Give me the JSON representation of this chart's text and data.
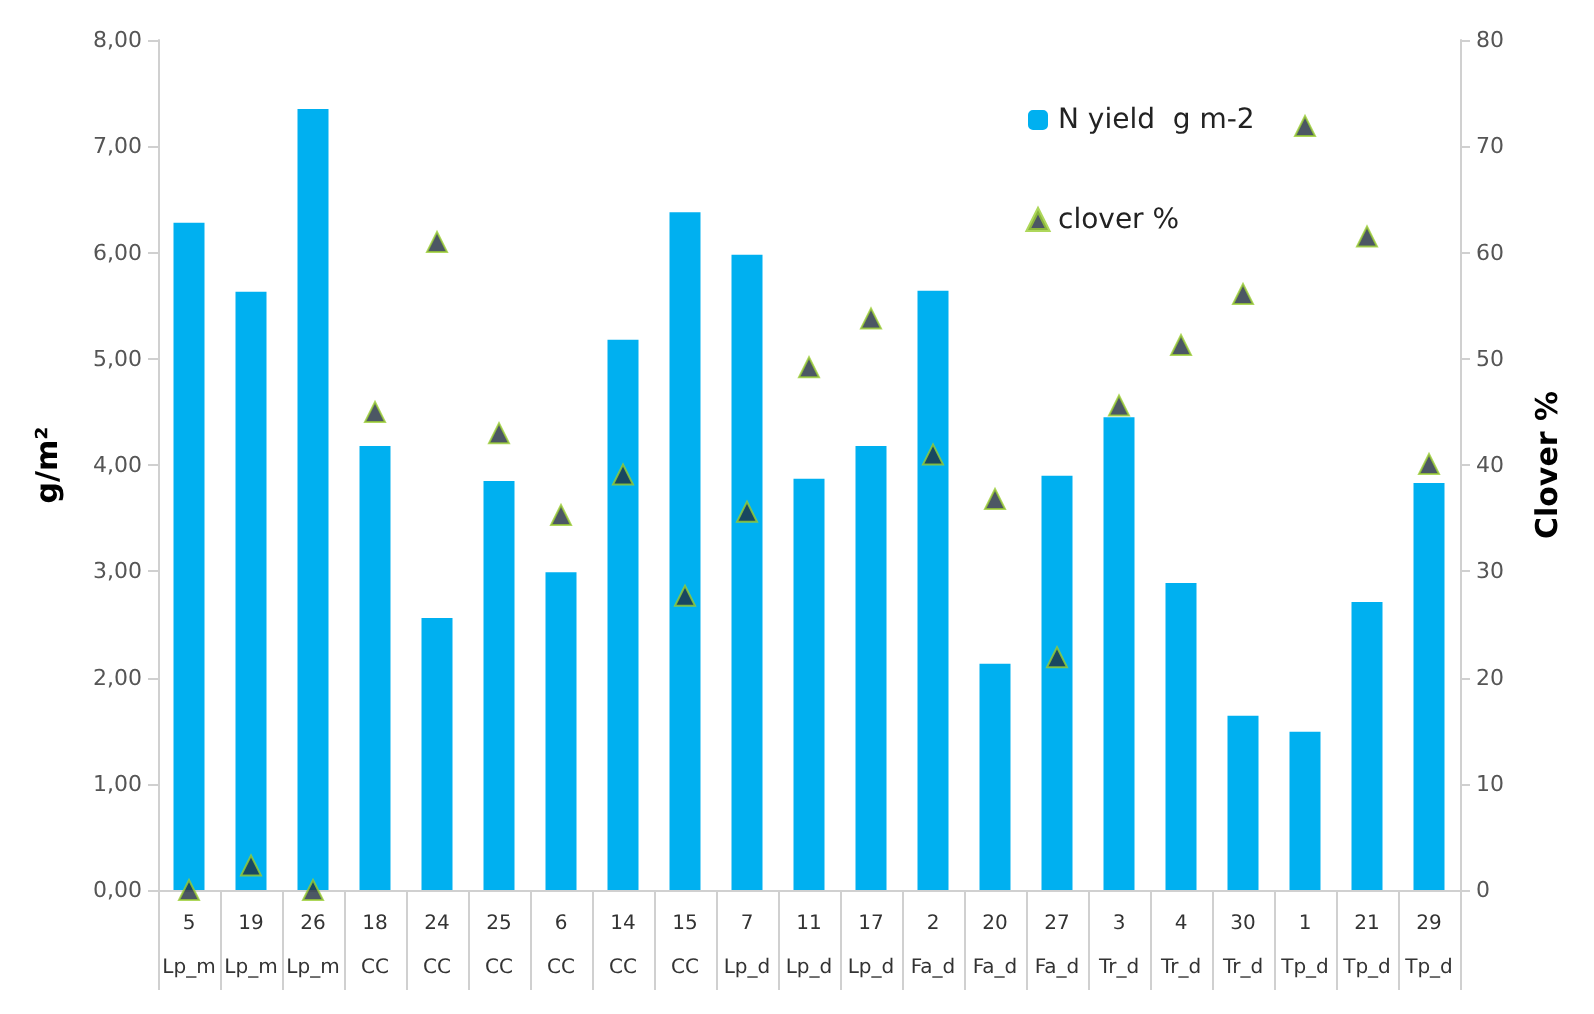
{
  "chart_data": {
    "type": "bar",
    "ylabel": "g/m²",
    "y2label": "Clover %",
    "categories": [
      "5\nLp_m",
      "19\nLp_m",
      "26\nLp_m",
      "18\nCC",
      "24\nCC",
      "25\nCC",
      "6\nCC",
      "14\nCC",
      "15\nCC",
      "7\nLp_d",
      "11\nLp_d",
      "17\nLp_d",
      "2\nFa_d",
      "20\nFa_d",
      "27\nFa_d",
      "3\nTr_d",
      "4\nTr_d",
      "30\nTr_d",
      "1\nTp_d",
      "21\nTp_d",
      "29\nTp_d"
    ],
    "series": [
      {
        "name": "N yield  g m-2",
        "color": "#00b0f0",
        "values": [
          6.28,
          5.63,
          7.35,
          4.18,
          2.56,
          3.85,
          2.99,
          5.18,
          6.38,
          5.98,
          3.87,
          4.18,
          5.64,
          2.13,
          3.9,
          4.45,
          2.89,
          1.64,
          1.49,
          2.71,
          3.83
        ]
      },
      {
        "name": "clover %",
        "type": "scatter",
        "axis": "y2",
        "color": "#1f2d3d",
        "values": [
          0,
          2.3,
          0,
          45,
          61,
          43,
          35.3,
          39.1,
          27.7,
          35.6,
          49.2,
          53.8,
          41,
          36.8,
          21.9,
          45.6,
          51.3,
          56.1,
          71.9,
          61.5,
          40.1
        ]
      }
    ],
    "ylim": [
      0,
      8
    ],
    "yticks": [
      {
        "value": 0,
        "label": "0,00"
      },
      {
        "value": 1,
        "label": "1,00"
      },
      {
        "value": 2,
        "label": "2,00"
      },
      {
        "value": 3,
        "label": "3,00"
      },
      {
        "value": 4,
        "label": "4,00"
      },
      {
        "value": 5,
        "label": "5,00"
      },
      {
        "value": 6,
        "label": "6,00"
      },
      {
        "value": 7,
        "label": "7,00"
      },
      {
        "value": 8,
        "label": "8,00"
      }
    ],
    "y2lim": [
      0,
      80
    ],
    "y2ticks": [
      0,
      10,
      20,
      30,
      40,
      50,
      60,
      70,
      80
    ],
    "marker": "triangle",
    "grid": false,
    "legend": "top right"
  }
}
